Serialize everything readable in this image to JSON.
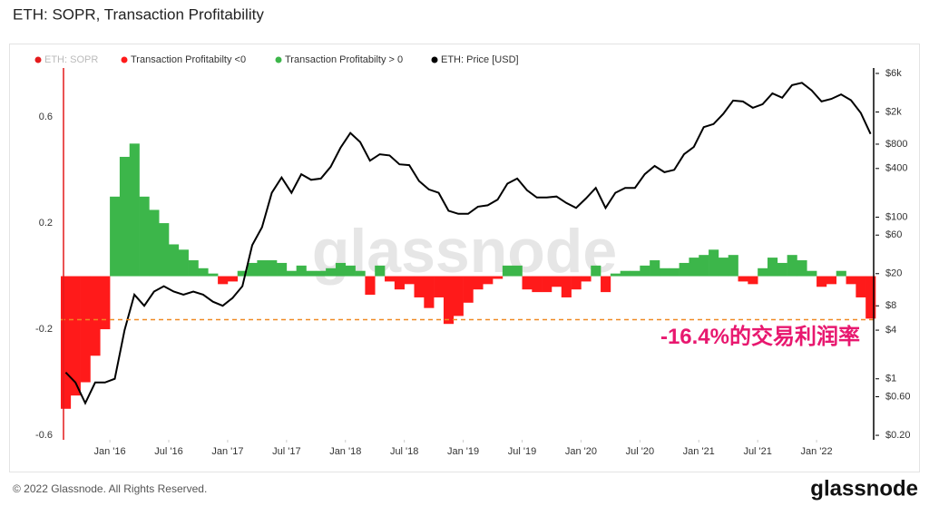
{
  "chart_data": {
    "type": "combo",
    "title": "ETH: SOPR, Transaction Profitability",
    "legend_hidden": {
      "name": "ETH: SOPR",
      "color": "#e41a1c"
    },
    "x": [
      "2015-08",
      "2015-09",
      "2015-10",
      "2015-11",
      "2015-12",
      "2016-01",
      "2016-02",
      "2016-03",
      "2016-04",
      "2016-05",
      "2016-06",
      "2016-07",
      "2016-08",
      "2016-09",
      "2016-10",
      "2016-11",
      "2016-12",
      "2017-01",
      "2017-02",
      "2017-03",
      "2017-04",
      "2017-05",
      "2017-06",
      "2017-07",
      "2017-08",
      "2017-09",
      "2017-10",
      "2017-11",
      "2017-12",
      "2018-01",
      "2018-02",
      "2018-03",
      "2018-04",
      "2018-05",
      "2018-06",
      "2018-07",
      "2018-08",
      "2018-09",
      "2018-10",
      "2018-11",
      "2018-12",
      "2019-01",
      "2019-02",
      "2019-03",
      "2019-04",
      "2019-05",
      "2019-06",
      "2019-07",
      "2019-08",
      "2019-09",
      "2019-10",
      "2019-11",
      "2019-12",
      "2020-01",
      "2020-02",
      "2020-03",
      "2020-04",
      "2020-05",
      "2020-06",
      "2020-07",
      "2020-08",
      "2020-09",
      "2020-10",
      "2020-11",
      "2020-12",
      "2021-01",
      "2021-02",
      "2021-03",
      "2021-04",
      "2021-05",
      "2021-06",
      "2021-07",
      "2021-08",
      "2021-09",
      "2021-10",
      "2021-11",
      "2021-12",
      "2022-01",
      "2022-02",
      "2022-03",
      "2022-04",
      "2022-05",
      "2022-06"
    ],
    "series": [
      {
        "name": "Transaction Profitabilty <0",
        "type": "bar",
        "color": "#ff1a1a",
        "values": [
          -0.5,
          -0.45,
          -0.4,
          -0.3,
          -0.2,
          null,
          null,
          null,
          null,
          null,
          null,
          null,
          null,
          null,
          null,
          null,
          -0.03,
          -0.02,
          null,
          null,
          null,
          null,
          null,
          null,
          null,
          null,
          null,
          null,
          null,
          null,
          null,
          -0.07,
          null,
          -0.02,
          -0.05,
          -0.03,
          -0.08,
          -0.12,
          -0.08,
          -0.18,
          -0.15,
          -0.1,
          -0.05,
          -0.03,
          -0.01,
          null,
          null,
          -0.05,
          -0.06,
          -0.06,
          -0.04,
          -0.08,
          -0.05,
          -0.02,
          null,
          -0.06,
          null,
          null,
          null,
          null,
          null,
          null,
          null,
          null,
          null,
          null,
          null,
          null,
          null,
          -0.02,
          -0.03,
          null,
          null,
          null,
          null,
          null,
          null,
          -0.04,
          -0.03,
          null,
          -0.03,
          -0.08,
          -0.16
        ]
      },
      {
        "name": "Transaction Profitabilty > 0",
        "type": "bar",
        "color": "#3cb64a",
        "values": [
          null,
          null,
          null,
          null,
          null,
          0.3,
          0.45,
          0.5,
          0.3,
          0.25,
          0.2,
          0.12,
          0.1,
          0.06,
          0.03,
          0.01,
          null,
          null,
          0.02,
          0.05,
          0.06,
          0.06,
          0.05,
          0.02,
          0.04,
          0.02,
          0.02,
          0.03,
          0.05,
          0.04,
          0.02,
          null,
          0.04,
          null,
          null,
          null,
          null,
          null,
          null,
          null,
          null,
          null,
          null,
          null,
          null,
          0.04,
          0.04,
          null,
          null,
          null,
          null,
          null,
          null,
          null,
          0.04,
          null,
          0.01,
          0.02,
          0.02,
          0.04,
          0.06,
          0.03,
          0.03,
          0.05,
          0.07,
          0.08,
          0.1,
          0.07,
          0.08,
          null,
          null,
          0.03,
          0.07,
          0.05,
          0.08,
          0.06,
          0.02,
          null,
          null,
          0.02,
          null,
          null,
          null
        ]
      },
      {
        "name": "ETH: Price [USD]",
        "type": "line",
        "axis": "y2",
        "color": "#000000",
        "values": [
          1.2,
          0.9,
          0.5,
          0.9,
          0.9,
          1.0,
          4,
          11,
          8,
          12,
          14,
          12,
          11,
          12,
          11,
          9,
          8,
          10,
          14,
          45,
          75,
          200,
          310,
          200,
          340,
          290,
          300,
          420,
          720,
          1100,
          850,
          500,
          600,
          580,
          450,
          440,
          280,
          220,
          200,
          120,
          110,
          110,
          135,
          140,
          165,
          260,
          300,
          215,
          175,
          175,
          180,
          150,
          130,
          170,
          230,
          130,
          200,
          230,
          230,
          340,
          430,
          360,
          385,
          600,
          740,
          1300,
          1420,
          1900,
          2770,
          2700,
          2250,
          2500,
          3400,
          3000,
          4300,
          4600,
          3700,
          2700,
          2900,
          3300,
          2800,
          1950,
          1070
        ]
      }
    ],
    "xlim": [
      "2015-08",
      "2022-07"
    ],
    "xticks": [
      {
        "value": "2016-01",
        "label": "Jan '16"
      },
      {
        "value": "2016-07",
        "label": "Jul '16"
      },
      {
        "value": "2017-01",
        "label": "Jan '17"
      },
      {
        "value": "2017-07",
        "label": "Jul '17"
      },
      {
        "value": "2018-01",
        "label": "Jan '18"
      },
      {
        "value": "2018-07",
        "label": "Jul '18"
      },
      {
        "value": "2019-01",
        "label": "Jan '19"
      },
      {
        "value": "2019-07",
        "label": "Jul '19"
      },
      {
        "value": "2020-01",
        "label": "Jan '20"
      },
      {
        "value": "2020-07",
        "label": "Jul '20"
      },
      {
        "value": "2021-01",
        "label": "Jan '21"
      },
      {
        "value": "2021-07",
        "label": "Jul '21"
      },
      {
        "value": "2022-01",
        "label": "Jan '22"
      }
    ],
    "ylim": [
      -0.617,
      0.785
    ],
    "yticks": [
      0.6,
      0.2,
      -0.2,
      -0.6
    ],
    "y2lim": [
      0.176,
      7000
    ],
    "y2log": true,
    "y2ticks": [
      {
        "value": 6000,
        "label": "$6k"
      },
      {
        "value": 2000,
        "label": "$2k"
      },
      {
        "value": 800,
        "label": "$800"
      },
      {
        "value": 400,
        "label": "$400"
      },
      {
        "value": 100,
        "label": "$100"
      },
      {
        "value": 60,
        "label": "$60"
      },
      {
        "value": 20,
        "label": "$20"
      },
      {
        "value": 8,
        "label": "$8"
      },
      {
        "value": 4,
        "label": "$4"
      },
      {
        "value": 1,
        "label": "$1"
      },
      {
        "value": 0.6,
        "label": "$0.60"
      },
      {
        "value": 0.2,
        "label": "$0.20"
      }
    ],
    "grid": false,
    "annotation": {
      "text": "-16.4%的交易利润率",
      "value": -0.164,
      "color": "#e8186f",
      "line_color": "#f08a24"
    },
    "watermark": "glassnode",
    "footer": "© 2022 Glassnode. All Rights Reserved.",
    "brand": "glassnode"
  }
}
